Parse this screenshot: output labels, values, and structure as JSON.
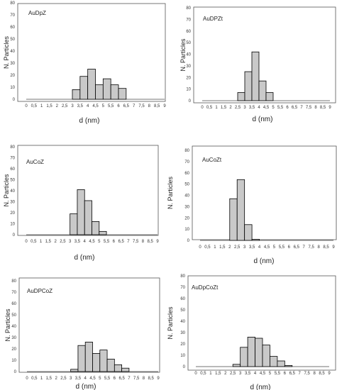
{
  "chart_data": [
    {
      "type": "bar",
      "title": "AuDpZ",
      "xlabel": "d (nm)",
      "ylabel": "N. Particles",
      "x_ticks": [
        "0",
        "0,5",
        "1",
        "1,5",
        "2",
        "2,5",
        "3",
        "3,5",
        "4",
        "4,5",
        "5",
        "5,5",
        "6",
        "6,5",
        "7",
        "7,5",
        "8",
        "8,5",
        "9"
      ],
      "ylim": [
        0,
        80
      ],
      "y_ticks": [
        "0",
        "10",
        "20",
        "30",
        "40",
        "50",
        "60",
        "70",
        "80"
      ],
      "bins": [
        {
          "x0": 3.0,
          "x1": 3.5,
          "value": 8
        },
        {
          "x0": 3.5,
          "x1": 4.0,
          "value": 19
        },
        {
          "x0": 4.0,
          "x1": 4.5,
          "value": 25
        },
        {
          "x0": 4.5,
          "x1": 5.0,
          "value": 12
        },
        {
          "x0": 5.0,
          "x1": 5.5,
          "value": 17
        },
        {
          "x0": 5.5,
          "x1": 6.0,
          "value": 12
        },
        {
          "x0": 6.0,
          "x1": 6.5,
          "value": 9
        }
      ],
      "grid": false
    },
    {
      "type": "bar",
      "title": "AuDPZt",
      "xlabel": "d (nm)",
      "ylabel": "N. Particles",
      "x_ticks": [
        "0",
        "0,5",
        "1",
        "1,5",
        "2",
        "2,5",
        "3",
        "3,5",
        "4",
        "4,5",
        "5",
        "5,5",
        "6",
        "6,5",
        "7",
        "7,5",
        "8",
        "8,5",
        "9"
      ],
      "ylim": [
        0,
        80
      ],
      "y_ticks": [
        "0",
        "10",
        "20",
        "30",
        "40",
        "50",
        "60",
        "70",
        "80"
      ],
      "bins": [
        {
          "x0": 2.5,
          "x1": 3.0,
          "value": 7
        },
        {
          "x0": 3.0,
          "x1": 3.5,
          "value": 25
        },
        {
          "x0": 3.5,
          "x1": 4.0,
          "value": 42
        },
        {
          "x0": 4.0,
          "x1": 4.5,
          "value": 17
        },
        {
          "x0": 4.5,
          "x1": 5.0,
          "value": 7
        }
      ],
      "grid": false
    },
    {
      "type": "bar",
      "title": "AuCoZ",
      "xlabel": "d (nm)",
      "ylabel": "N. Particles",
      "x_ticks": [
        "0",
        "0,5",
        "1",
        "1,5",
        "2",
        "2,5",
        "3",
        "3,5",
        "4",
        "4,5",
        "5",
        "5,5",
        "6",
        "6,5",
        "7",
        "7,5",
        "8",
        "8,5",
        "9"
      ],
      "ylim": [
        0,
        80
      ],
      "y_ticks": [
        "0",
        "10",
        "20",
        "30",
        "40",
        "50",
        "60",
        "70",
        "80"
      ],
      "bins": [
        {
          "x0": 3.0,
          "x1": 3.5,
          "value": 19
        },
        {
          "x0": 3.5,
          "x1": 4.0,
          "value": 41
        },
        {
          "x0": 4.0,
          "x1": 4.5,
          "value": 31
        },
        {
          "x0": 4.5,
          "x1": 5.0,
          "value": 12
        },
        {
          "x0": 5.0,
          "x1": 5.5,
          "value": 3
        }
      ],
      "grid": false
    },
    {
      "type": "bar",
      "title": "AuCoZt",
      "xlabel": "d (nm)",
      "ylabel": "N. Particles",
      "x_ticks": [
        "0",
        "0,5",
        "1",
        "1,5",
        "2",
        "2,5",
        "3",
        "3,5",
        "4",
        "4,5",
        "5",
        "5,5",
        "6",
        "6,5",
        "7",
        "7,5",
        "8",
        "8,5",
        "9"
      ],
      "ylim": [
        0,
        80
      ],
      "y_ticks": [
        "0",
        "10",
        "20",
        "30",
        "40",
        "50",
        "60",
        "70",
        "80"
      ],
      "bins": [
        {
          "x0": 2.0,
          "x1": 2.5,
          "value": 37
        },
        {
          "x0": 2.5,
          "x1": 3.0,
          "value": 54
        },
        {
          "x0": 3.0,
          "x1": 3.5,
          "value": 14
        },
        {
          "x0": 3.5,
          "x1": 4.0,
          "value": 1
        }
      ],
      "grid": false
    },
    {
      "type": "bar",
      "title": "AuDPCoZ",
      "xlabel": "d (nm)",
      "ylabel": "N. Particles",
      "x_ticks": [
        "0",
        "0,5",
        "1",
        "1,5",
        "2",
        "2,5",
        "3",
        "3,5",
        "4",
        "4,5",
        "5",
        "5,5",
        "6",
        "6,5",
        "7",
        "7,5",
        "8",
        "8,5",
        "9"
      ],
      "ylim": [
        0,
        80
      ],
      "y_ticks": [
        "0",
        "10",
        "20",
        "30",
        "40",
        "50",
        "60",
        "70",
        "80"
      ],
      "bins": [
        {
          "x0": 3.0,
          "x1": 3.5,
          "value": 2
        },
        {
          "x0": 3.5,
          "x1": 4.0,
          "value": 23
        },
        {
          "x0": 4.0,
          "x1": 4.5,
          "value": 26
        },
        {
          "x0": 4.5,
          "x1": 5.0,
          "value": 16
        },
        {
          "x0": 5.0,
          "x1": 5.5,
          "value": 19
        },
        {
          "x0": 5.5,
          "x1": 6.0,
          "value": 11
        },
        {
          "x0": 6.0,
          "x1": 6.5,
          "value": 6
        },
        {
          "x0": 6.5,
          "x1": 7.0,
          "value": 3
        }
      ],
      "grid": false
    },
    {
      "type": "bar",
      "title": "AuDpCoZt",
      "xlabel": "d (nm)",
      "ylabel": "N. Particles",
      "x_ticks": [
        "0",
        "0,5",
        "1",
        "1,5",
        "2",
        "2,5",
        "3",
        "3,5",
        "4",
        "4,5",
        "5",
        "5,5",
        "6",
        "6,5",
        "7",
        "7,5",
        "8",
        "8,5",
        "9"
      ],
      "ylim": [
        0,
        80
      ],
      "y_ticks": [
        "0",
        "10",
        "20",
        "30",
        "40",
        "50",
        "60",
        "70",
        "80"
      ],
      "bins": [
        {
          "x0": 2.5,
          "x1": 3.0,
          "value": 2
        },
        {
          "x0": 3.0,
          "x1": 3.5,
          "value": 17
        },
        {
          "x0": 3.5,
          "x1": 4.0,
          "value": 26
        },
        {
          "x0": 4.0,
          "x1": 4.5,
          "value": 25
        },
        {
          "x0": 4.5,
          "x1": 5.0,
          "value": 19
        },
        {
          "x0": 5.0,
          "x1": 5.5,
          "value": 9
        },
        {
          "x0": 5.5,
          "x1": 6.0,
          "value": 5
        },
        {
          "x0": 6.0,
          "x1": 6.5,
          "value": 1
        }
      ],
      "grid": false
    }
  ],
  "colors": {
    "bar_fill": "#c9c9c9",
    "bar_stroke": "#000000",
    "frame": "#555555",
    "axis": "#444444"
  }
}
